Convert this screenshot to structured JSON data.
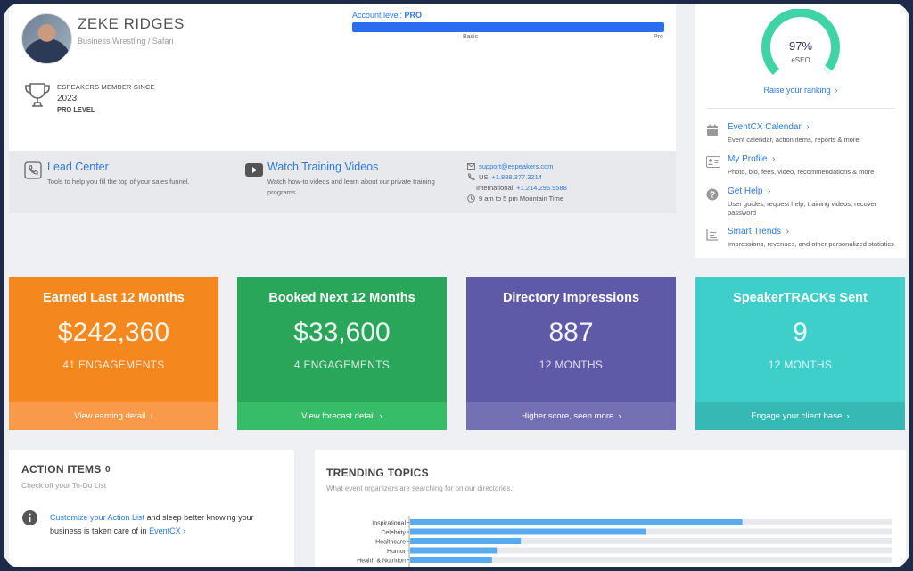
{
  "profile": {
    "name": "ZEKE RIDGES",
    "subtitle": "Business Wrestling / Safari",
    "member_since_label": "ESPEAKERS MEMBER SINCE",
    "member_since_year": "2023",
    "level": "PRO LEVEL",
    "account_level_label": "Account level:",
    "account_level_value": "PRO",
    "account_level_fraction": 1.0,
    "bar_min_label": "Basic",
    "bar_max_label": "Pro"
  },
  "quick_links": {
    "lead": {
      "title": "Lead Center",
      "desc": "Tools to help you fill the top of your sales funnel."
    },
    "training": {
      "title": "Watch Training Videos",
      "desc": "Watch how-to videos and learn about our private training programs"
    },
    "contact": {
      "email": "support@espeakers.com",
      "us_prefix": "US",
      "us_phone": "+1.888.377.3214",
      "intl_prefix": "International",
      "intl_phone": "+1.214.296.9588",
      "hours": "9 am to 5 pm Mountain Time"
    }
  },
  "eseo": {
    "value": "97%",
    "percent": 97,
    "label": "eSEO",
    "raise_link": "Raise your ranking"
  },
  "right_menu": [
    {
      "title": "EventCX Calendar",
      "desc": "Event calendar, action items, reports & more",
      "icon": "calendar-icon"
    },
    {
      "title": "My Profile",
      "desc": "Photo, bio, fees, video, recommendations & more",
      "icon": "profile-card-icon"
    },
    {
      "title": "Get Help",
      "desc": "User guides, request help, training videos, recover password",
      "icon": "help-icon"
    },
    {
      "title": "Smart Trends",
      "desc": "Impressions, revenues, and other personalized statistics",
      "icon": "chart-icon"
    }
  ],
  "cards": {
    "earned": {
      "title": "Earned Last 12 Months",
      "value": "$242,360",
      "sub": "41 ENGAGEMENTS",
      "footer": "View earning detail",
      "color": "#f5871f"
    },
    "booked": {
      "title": "Booked Next 12 Months",
      "value": "$33,600",
      "sub": "4 ENGAGEMENTS",
      "footer": "View forecast detail",
      "color": "#2aa65a"
    },
    "directory": {
      "title": "Directory Impressions",
      "value": "887",
      "sub": "12 MONTHS",
      "footer": "Higher score, seen more",
      "color": "#5f5aa8"
    },
    "tracks": {
      "title": "SpeakerTRACKs Sent",
      "value": "9",
      "sub": "12 MONTHS",
      "footer": "Engage your client base",
      "color": "#3ecfcb"
    }
  },
  "action_items": {
    "title": "ACTION ITEMS",
    "count": "0",
    "subtitle": "Check off your To-Do List",
    "link1": "Customize your Action List",
    "text_mid": "and sleep better knowing your business is taken care of in",
    "link2": "EventCX"
  },
  "trending": {
    "title": "TRENDING TOPICS",
    "subtitle": "What event organizers are searching for on our directories."
  },
  "chart_data": {
    "type": "bar",
    "orientation": "horizontal",
    "categories": [
      "Inspirational",
      "Celebrity",
      "Healthcare",
      "Humor",
      "Health & Nutrition"
    ],
    "values": [
      0.69,
      0.49,
      0.23,
      0.18,
      0.17
    ],
    "xlim": [
      0,
      1
    ],
    "bar_color": "#5aaaf0",
    "track_color": "#e8e9ec"
  }
}
